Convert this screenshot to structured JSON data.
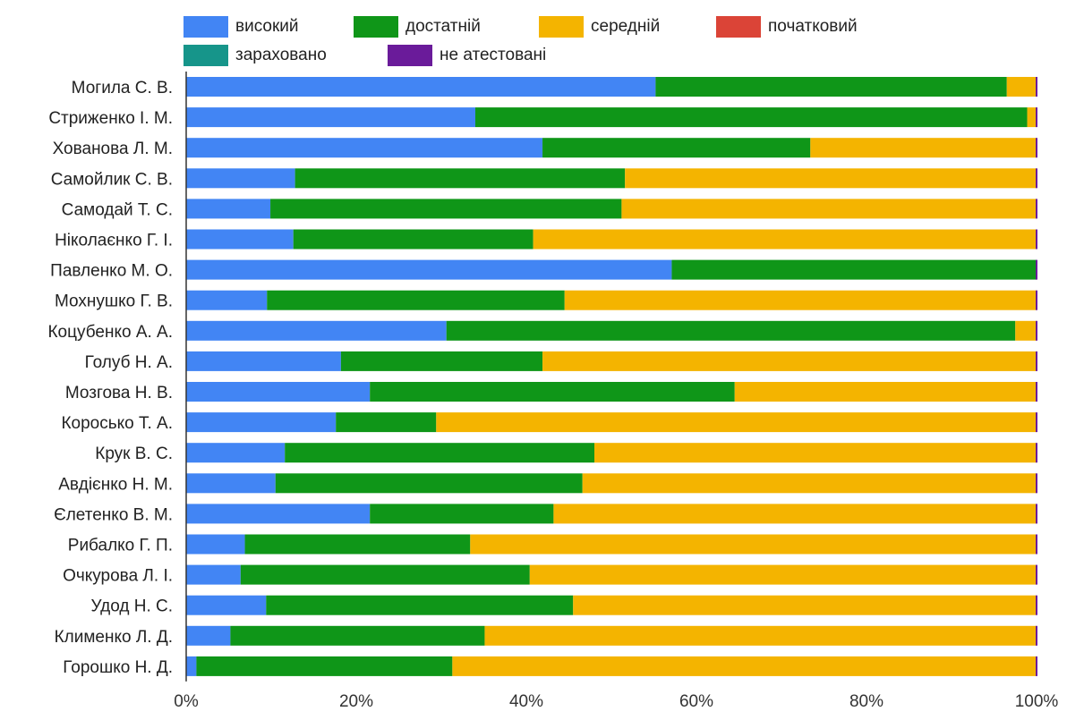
{
  "chart_data": {
    "type": "bar",
    "orientation": "horizontal",
    "stacked": "percent",
    "categories": [
      "Могила С. В.",
      "Стриженко І. М.",
      "Хованова Л. М.",
      "Самойлик С. В.",
      "Самодай Т. С.",
      "Ніколаєнко Г. І.",
      "Павленко М. О.",
      "Мохнушко Г. В.",
      "Коцубенко А. А.",
      "Голуб Н. А.",
      "Мозгова Н. В.",
      "Коросько Т. А.",
      "Крук В. С.",
      "Авдієнко Н. М.",
      "Єлетенко В. М.",
      "Рибалко Г. П.",
      "Очкурова Л. І.",
      "Удод Н. С.",
      "Клименко Л. Д.",
      "Горошко Н. Д."
    ],
    "series": [
      {
        "name": "високий",
        "color": "#4285f4",
        "values": [
          55.2,
          34.0,
          41.9,
          12.8,
          9.9,
          12.6,
          57.1,
          9.5,
          30.6,
          18.2,
          21.6,
          17.6,
          11.6,
          10.5,
          21.6,
          6.9,
          6.4,
          9.4,
          5.2,
          1.2
        ]
      },
      {
        "name": "достатній",
        "color": "#0f9618",
        "values": [
          41.3,
          64.9,
          31.5,
          38.8,
          41.3,
          28.2,
          42.9,
          35.0,
          66.9,
          23.7,
          42.9,
          11.8,
          36.4,
          36.1,
          21.6,
          26.5,
          34.0,
          36.1,
          29.9,
          30.1
        ]
      },
      {
        "name": "середній",
        "color": "#f4b400",
        "values": [
          3.5,
          1.1,
          26.6,
          48.4,
          48.8,
          59.2,
          0,
          55.5,
          2.5,
          58.1,
          35.5,
          70.6,
          52.0,
          53.4,
          56.8,
          66.6,
          59.6,
          54.5,
          64.9,
          68.7
        ]
      },
      {
        "name": "початковий",
        "color": "#db4437",
        "values": [
          0,
          0,
          0,
          0,
          0,
          0,
          0,
          0,
          0,
          0,
          0,
          0,
          0,
          0,
          0,
          0,
          0,
          0,
          0,
          0
        ]
      },
      {
        "name": "зараховано",
        "color": "#16958a",
        "values": [
          0,
          0,
          0,
          0,
          0,
          0,
          0,
          0,
          0,
          0,
          0,
          0,
          0,
          0,
          0,
          0,
          0,
          0,
          0,
          0
        ]
      },
      {
        "name": "не атестовані",
        "color": "#6a1b9a",
        "values": [
          0,
          0,
          0,
          0,
          0,
          0,
          0,
          0,
          0,
          0,
          0,
          0,
          0,
          0,
          0,
          0,
          0,
          0,
          0,
          0
        ]
      }
    ],
    "xlim": [
      0,
      100
    ],
    "xticks": [
      "0%",
      "20%",
      "40%",
      "60%",
      "80%",
      "100%"
    ],
    "legend_position": "top-left",
    "grid": false
  }
}
